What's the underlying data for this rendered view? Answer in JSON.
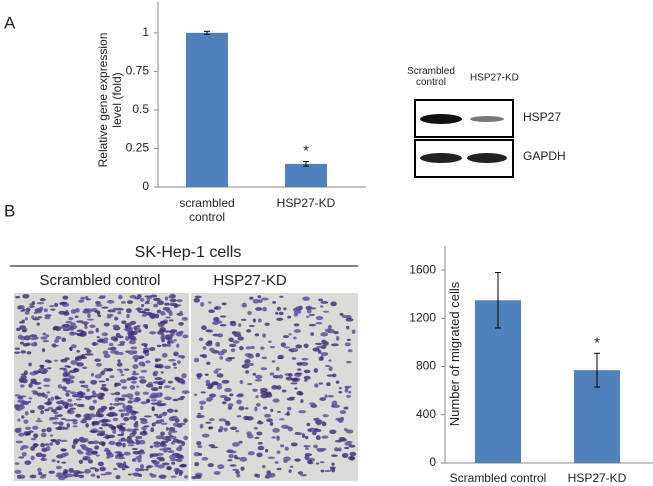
{
  "panel_labels": [
    "A",
    "B"
  ],
  "chart_data": [
    {
      "type": "bar",
      "y_label": "Relative gene expression level (fold)",
      "categories": [
        "scrambled control",
        "HSP27-KD"
      ],
      "values": [
        1.0,
        0.15
      ],
      "errors": [
        0.01,
        0.015
      ],
      "significance_labels": [
        null,
        "*"
      ],
      "color": "#4f81bd",
      "ylim": [
        0,
        1.2
      ],
      "yticks": [
        0,
        0.25,
        0.5,
        0.75,
        1
      ]
    },
    {
      "type": "bar",
      "y_label": "Number of migrated cells",
      "categories": [
        "Scrambled control",
        "HSP27-KD"
      ],
      "values": [
        1350,
        770
      ],
      "errors": [
        230,
        140
      ],
      "significance_labels": [
        null,
        "*"
      ],
      "color": "#4f81bd",
      "ylim": [
        0,
        1800
      ],
      "yticks": [
        0,
        400,
        800,
        1200,
        1600
      ]
    }
  ],
  "western_blot": {
    "lanes": [
      "Scrambled control",
      "HSP27-KD"
    ],
    "bands": [
      "HSP27",
      "GAPDH"
    ]
  },
  "migration_images": {
    "title": "SK-Hep-1 cells",
    "conditions": [
      "Scrambled control",
      "HSP27-KD"
    ]
  }
}
